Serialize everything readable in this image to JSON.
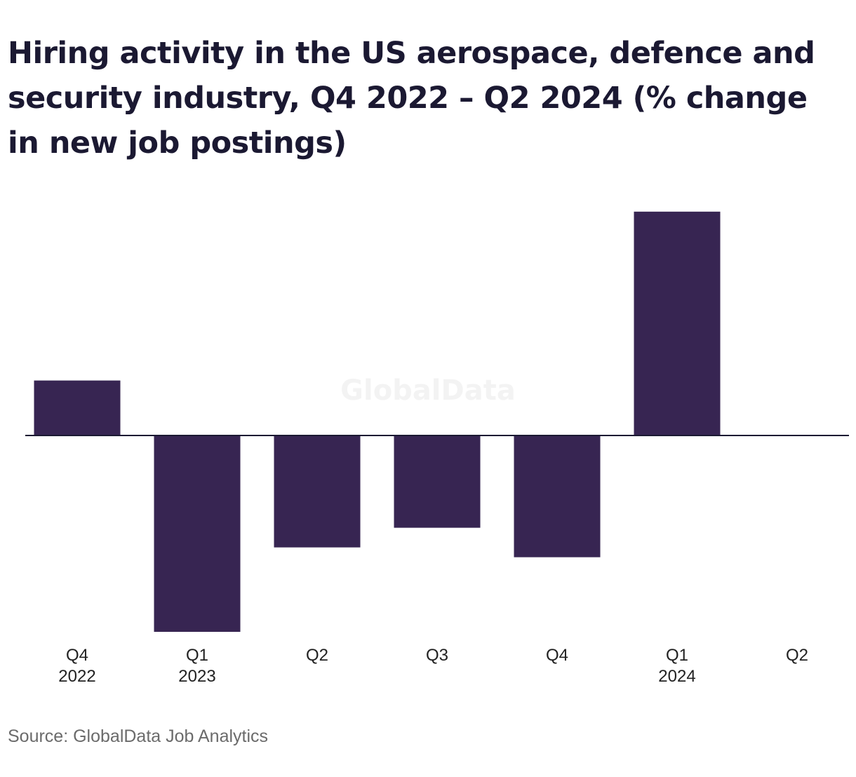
{
  "title": "Hiring activity in the US aerospace, defence and security industry, Q4 2022 – Q2 2024 (% change in new job postings)",
  "watermark": "GlobalData",
  "source": "Source: GlobalData Job Analytics",
  "colors": {
    "bar": "#372552",
    "axis": "#1b1932",
    "title": "#1b1932",
    "source": "#6b6b6b"
  },
  "chart_data": {
    "type": "bar",
    "categories": [
      {
        "quarter": "Q4",
        "year": "2022"
      },
      {
        "quarter": "Q1",
        "year": "2023"
      },
      {
        "quarter": "Q2",
        "year": ""
      },
      {
        "quarter": "Q3",
        "year": ""
      },
      {
        "quarter": "Q4",
        "year": ""
      },
      {
        "quarter": "Q1",
        "year": "2024"
      },
      {
        "quarter": "Q2",
        "year": ""
      }
    ],
    "values": [
      2.8,
      -10,
      -5.7,
      -4.7,
      -6.2,
      11.4,
      0
    ],
    "ylim": [
      -10,
      11.4
    ],
    "xlabel": "",
    "ylabel": "",
    "grid": false,
    "legend": "none"
  }
}
